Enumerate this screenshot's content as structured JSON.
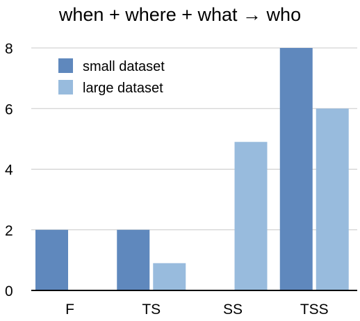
{
  "chart_data": {
    "type": "bar",
    "title": "when + where + what → who",
    "xlabel": "",
    "ylabel": "",
    "categories": [
      "F",
      "TS",
      "SS",
      "TSS"
    ],
    "series": [
      {
        "name": "small dataset",
        "color": "#5f88bd",
        "values": [
          2,
          2,
          0,
          8
        ]
      },
      {
        "name": "large dataset",
        "color": "#98bbdd",
        "values": [
          0,
          0.9,
          4.9,
          6
        ]
      }
    ],
    "ylim": [
      0,
      8
    ],
    "yticks": [
      "0",
      "2",
      "4",
      "6",
      "8"
    ],
    "grid": true,
    "legend": "top-left"
  }
}
